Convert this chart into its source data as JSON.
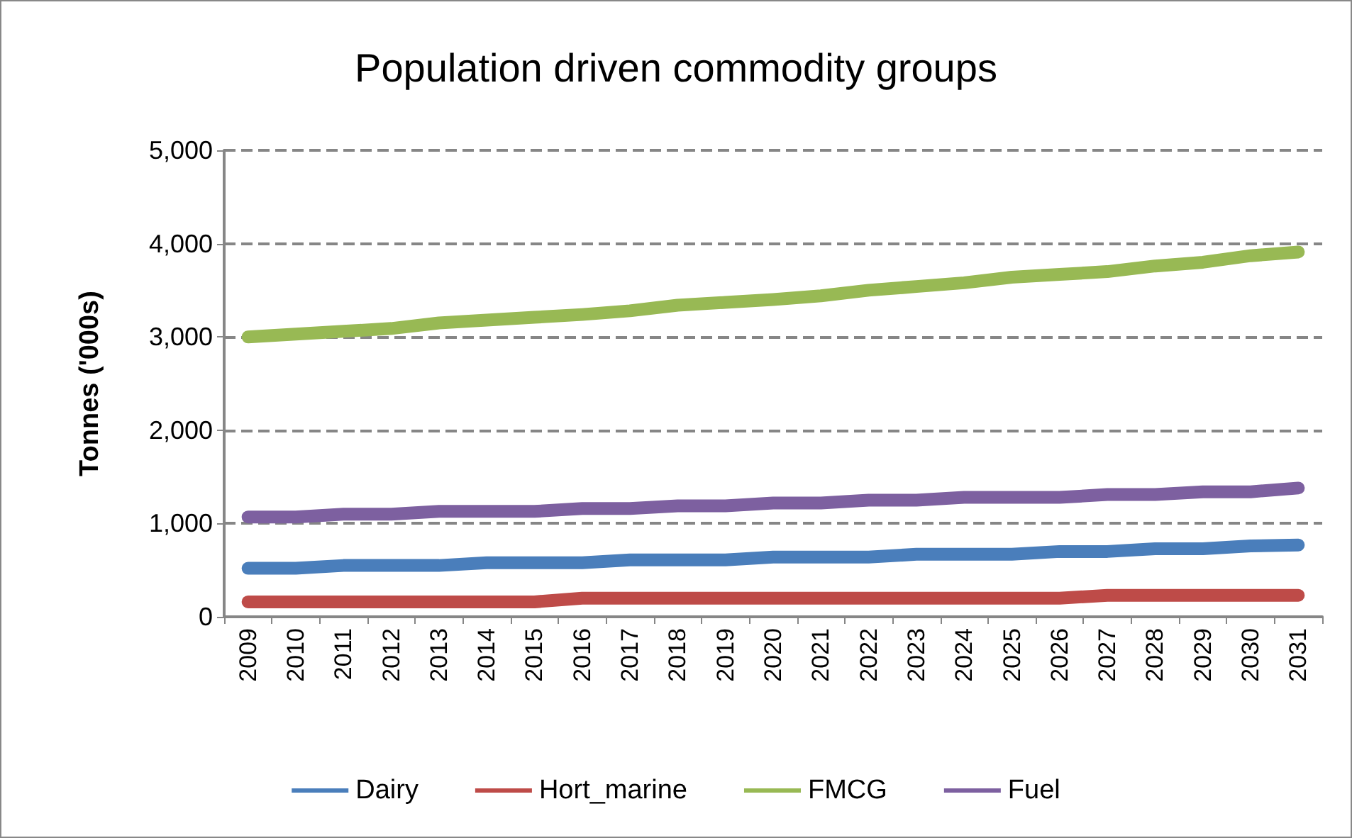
{
  "chart_data": {
    "type": "line",
    "title": "Population driven commodity groups",
    "ylabel": "Tonnes ('000s)",
    "categories": [
      "2009",
      "2010",
      "2011",
      "2012",
      "2013",
      "2014",
      "2015",
      "2016",
      "2017",
      "2018",
      "2019",
      "2020",
      "2021",
      "2022",
      "2023",
      "2024",
      "2025",
      "2026",
      "2027",
      "2028",
      "2029",
      "2030",
      "2031"
    ],
    "series": [
      {
        "name": "Dairy",
        "color": "#4a7ebb",
        "values": [
          520,
          520,
          550,
          550,
          550,
          580,
          580,
          580,
          610,
          610,
          610,
          640,
          640,
          640,
          670,
          670,
          670,
          700,
          700,
          730,
          730,
          760,
          770
        ]
      },
      {
        "name": "Hort_marine",
        "color": "#be4b48",
        "values": [
          160,
          160,
          160,
          160,
          160,
          160,
          160,
          200,
          200,
          200,
          200,
          200,
          200,
          200,
          200,
          200,
          200,
          200,
          230,
          230,
          230,
          230,
          230
        ]
      },
      {
        "name": "FMCG",
        "color": "#98b954",
        "values": [
          3000,
          3030,
          3060,
          3090,
          3150,
          3180,
          3210,
          3240,
          3280,
          3340,
          3370,
          3400,
          3440,
          3500,
          3540,
          3580,
          3640,
          3670,
          3700,
          3760,
          3800,
          3870,
          3910
        ]
      },
      {
        "name": "Fuel",
        "color": "#7d60a0",
        "values": [
          1070,
          1070,
          1100,
          1100,
          1130,
          1130,
          1130,
          1160,
          1160,
          1190,
          1190,
          1220,
          1220,
          1250,
          1250,
          1280,
          1280,
          1280,
          1310,
          1310,
          1340,
          1340,
          1380
        ]
      }
    ],
    "ylim": [
      0,
      5000
    ],
    "yticks": [
      0,
      {
        "value": 1000,
        "label": "1,000"
      },
      {
        "value": 2000,
        "label": "2,000"
      },
      {
        "value": 3000,
        "label": "3,000"
      },
      {
        "value": 4000,
        "label": "4,000"
      },
      {
        "value": 5000,
        "label": "5,000"
      }
    ],
    "grid": "y",
    "legend": "bottom",
    "line_style": "solid"
  }
}
